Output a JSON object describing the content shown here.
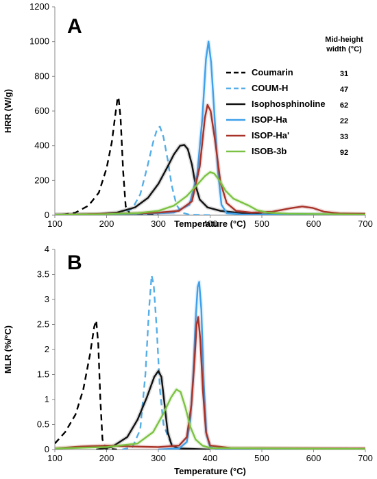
{
  "colors": {
    "Coumarin": "#000000",
    "COUM-H": "#55aee8",
    "Isophosphinoline": "#111111",
    "ISOP-Ha": "#3fa0ea",
    "ISOP-Ha'": "#a83228",
    "ISOB-3b": "#7cc242"
  },
  "chart_data": [
    {
      "type": "line",
      "panel_label": "A",
      "xlabel": "Temperature (°C)",
      "ylabel": "HRR (W/g)",
      "xlim": [
        100,
        700
      ],
      "ylim": [
        0,
        1200
      ],
      "xticks": [
        100,
        200,
        300,
        400,
        500,
        600,
        700
      ],
      "yticks": [
        0,
        200,
        400,
        600,
        800,
        1000,
        1200
      ],
      "grid": false,
      "legend_position": "top-right",
      "width_header": [
        "Mid-height",
        "width (°C)"
      ],
      "series": [
        {
          "name": "Coumarin",
          "dash": true,
          "mid_height_width": "31",
          "points": [
            [
              115,
              3
            ],
            [
              140,
              15
            ],
            [
              165,
              55
            ],
            [
              185,
              130
            ],
            [
              200,
              270
            ],
            [
              210,
              420
            ],
            [
              217,
              580
            ],
            [
              221,
              670
            ],
            [
              223,
              680
            ],
            [
              227,
              560
            ],
            [
              232,
              250
            ],
            [
              237,
              50
            ],
            [
              245,
              10
            ],
            [
              260,
              2
            ],
            [
              300,
              0
            ]
          ]
        },
        {
          "name": "COUM-H",
          "dash": true,
          "mid_height_width": "47",
          "points": [
            [
              200,
              2
            ],
            [
              230,
              10
            ],
            [
              250,
              40
            ],
            [
              265,
              120
            ],
            [
              278,
              270
            ],
            [
              290,
              420
            ],
            [
              298,
              500
            ],
            [
              303,
              510
            ],
            [
              310,
              450
            ],
            [
              318,
              320
            ],
            [
              326,
              170
            ],
            [
              335,
              60
            ],
            [
              345,
              15
            ],
            [
              360,
              3
            ],
            [
              400,
              0
            ]
          ]
        },
        {
          "name": "Isophosphinoline",
          "dash": false,
          "mid_height_width": "62",
          "points": [
            [
              100,
              2
            ],
            [
              180,
              5
            ],
            [
              220,
              15
            ],
            [
              255,
              45
            ],
            [
              280,
              100
            ],
            [
              300,
              180
            ],
            [
              318,
              280
            ],
            [
              330,
              350
            ],
            [
              342,
              400
            ],
            [
              350,
              405
            ],
            [
              357,
              380
            ],
            [
              365,
              290
            ],
            [
              372,
              170
            ],
            [
              380,
              90
            ],
            [
              395,
              45
            ],
            [
              420,
              25
            ],
            [
              460,
              12
            ],
            [
              500,
              6
            ],
            [
              600,
              4
            ],
            [
              700,
              3
            ]
          ]
        },
        {
          "name": "ISOP-Ha",
          "dash": false,
          "mid_height_width": "22",
          "points": [
            [
              100,
              2
            ],
            [
              250,
              5
            ],
            [
              330,
              15
            ],
            [
              360,
              60
            ],
            [
              375,
              230
            ],
            [
              385,
              560
            ],
            [
              392,
              900
            ],
            [
              397,
              1000
            ],
            [
              402,
              880
            ],
            [
              408,
              600
            ],
            [
              415,
              260
            ],
            [
              422,
              60
            ],
            [
              432,
              12
            ],
            [
              460,
              4
            ],
            [
              700,
              2
            ]
          ]
        },
        {
          "name": "ISOP-Ha'",
          "dash": false,
          "mid_height_width": "33",
          "points": [
            [
              100,
              3
            ],
            [
              200,
              8
            ],
            [
              250,
              10
            ],
            [
              300,
              15
            ],
            [
              340,
              25
            ],
            [
              365,
              80
            ],
            [
              380,
              280
            ],
            [
              390,
              560
            ],
            [
              395,
              635
            ],
            [
              401,
              600
            ],
            [
              410,
              420
            ],
            [
              420,
              190
            ],
            [
              432,
              70
            ],
            [
              450,
              25
            ],
            [
              480,
              15
            ],
            [
              520,
              20
            ],
            [
              555,
              40
            ],
            [
              578,
              50
            ],
            [
              598,
              42
            ],
            [
              620,
              20
            ],
            [
              650,
              10
            ],
            [
              700,
              8
            ]
          ]
        },
        {
          "name": "ISOB-3b",
          "dash": false,
          "mid_height_width": "92",
          "points": [
            [
              100,
              3
            ],
            [
              200,
              6
            ],
            [
              260,
              12
            ],
            [
              300,
              25
            ],
            [
              330,
              55
            ],
            [
              355,
              110
            ],
            [
              375,
              175
            ],
            [
              390,
              225
            ],
            [
              400,
              248
            ],
            [
              408,
              240
            ],
            [
              418,
              200
            ],
            [
              430,
              140
            ],
            [
              445,
              95
            ],
            [
              460,
              75
            ],
            [
              475,
              55
            ],
            [
              490,
              30
            ],
            [
              510,
              15
            ],
            [
              550,
              8
            ],
            [
              700,
              4
            ]
          ]
        }
      ]
    },
    {
      "type": "line",
      "panel_label": "B",
      "xlabel": "Temperature (°C)",
      "ylabel": "MLR (%/°C)",
      "xlim": [
        100,
        700
      ],
      "ylim": [
        0,
        4
      ],
      "xticks": [
        100,
        200,
        300,
        400,
        500,
        600,
        700
      ],
      "yticks": [
        0,
        0.5,
        1,
        1.5,
        2,
        2.5,
        3,
        3.5,
        4
      ],
      "grid": false,
      "legend_position": "none",
      "series": [
        {
          "name": "Coumarin",
          "dash": true,
          "points": [
            [
              100,
              0.12
            ],
            [
              120,
              0.35
            ],
            [
              140,
              0.7
            ],
            [
              155,
              1.2
            ],
            [
              168,
              1.9
            ],
            [
              176,
              2.45
            ],
            [
              180,
              2.58
            ],
            [
              184,
              2.1
            ],
            [
              188,
              1.0
            ],
            [
              192,
              0.2
            ],
            [
              198,
              0.02
            ],
            [
              220,
              0
            ]
          ]
        },
        {
          "name": "COUM-H",
          "dash": true,
          "points": [
            [
              230,
              0
            ],
            [
              250,
              0.05
            ],
            [
              265,
              0.4
            ],
            [
              275,
              1.5
            ],
            [
              282,
              2.8
            ],
            [
              287,
              3.48
            ],
            [
              291,
              3.3
            ],
            [
              297,
              2.4
            ],
            [
              303,
              1.2
            ],
            [
              310,
              0.5
            ],
            [
              318,
              0.28
            ],
            [
              325,
              0.12
            ],
            [
              335,
              0.03
            ],
            [
              360,
              0
            ]
          ]
        },
        {
          "name": "Isophosphinoline",
          "dash": false,
          "points": [
            [
              180,
              0
            ],
            [
              210,
              0.05
            ],
            [
              240,
              0.25
            ],
            [
              260,
              0.6
            ],
            [
              278,
              1.05
            ],
            [
              292,
              1.45
            ],
            [
              300,
              1.57
            ],
            [
              306,
              1.45
            ],
            [
              312,
              0.9
            ],
            [
              318,
              0.35
            ],
            [
              326,
              0.08
            ],
            [
              340,
              0.02
            ],
            [
              400,
              0
            ]
          ]
        },
        {
          "name": "ISOP-Ha",
          "dash": false,
          "points": [
            [
              300,
              0
            ],
            [
              340,
              0.02
            ],
            [
              355,
              0.15
            ],
            [
              362,
              0.6
            ],
            [
              368,
              1.6
            ],
            [
              372,
              2.6
            ],
            [
              376,
              3.25
            ],
            [
              379,
              3.35
            ],
            [
              383,
              2.8
            ],
            [
              388,
              1.3
            ],
            [
              393,
              0.3
            ],
            [
              400,
              0.05
            ],
            [
              420,
              0
            ],
            [
              700,
              0
            ]
          ]
        },
        {
          "name": "ISOP-Ha'",
          "dash": false,
          "points": [
            [
              100,
              0.02
            ],
            [
              150,
              0.06
            ],
            [
              200,
              0.08
            ],
            [
              250,
              0.06
            ],
            [
              300,
              0.05
            ],
            [
              340,
              0.08
            ],
            [
              355,
              0.25
            ],
            [
              364,
              0.9
            ],
            [
              370,
              1.8
            ],
            [
              374,
              2.5
            ],
            [
              377,
              2.65
            ],
            [
              381,
              2.2
            ],
            [
              386,
              1.2
            ],
            [
              392,
              0.35
            ],
            [
              400,
              0.08
            ],
            [
              440,
              0.03
            ],
            [
              700,
              0.02
            ]
          ]
        },
        {
          "name": "ISOB-3b",
          "dash": false,
          "points": [
            [
              100,
              0.02
            ],
            [
              200,
              0.05
            ],
            [
              260,
              0.12
            ],
            [
              290,
              0.35
            ],
            [
              310,
              0.72
            ],
            [
              325,
              1.05
            ],
            [
              335,
              1.2
            ],
            [
              343,
              1.15
            ],
            [
              352,
              0.85
            ],
            [
              362,
              0.45
            ],
            [
              372,
              0.2
            ],
            [
              385,
              0.08
            ],
            [
              400,
              0.03
            ],
            [
              700,
              0.01
            ]
          ]
        }
      ]
    }
  ]
}
